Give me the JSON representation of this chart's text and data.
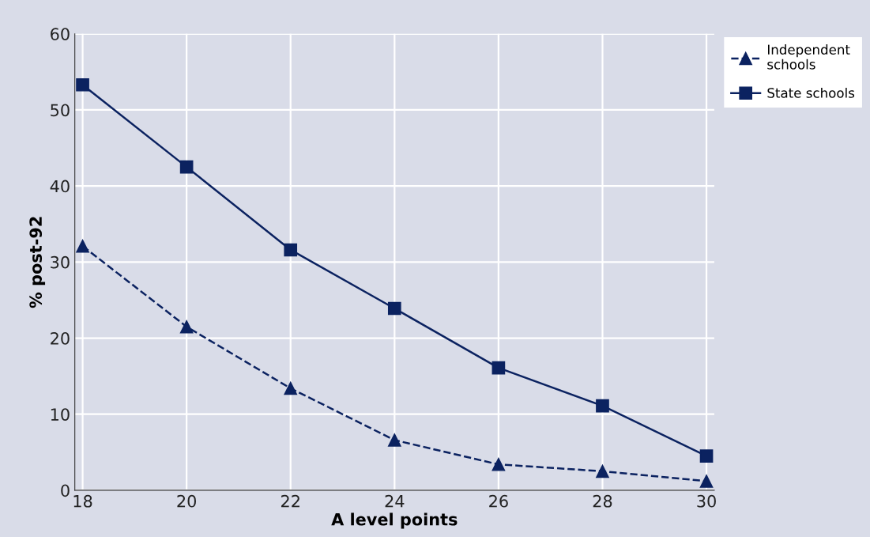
{
  "chart_data": {
    "type": "line",
    "xlabel": "A level points",
    "ylabel": "% post-92",
    "x": [
      18,
      20,
      22,
      24,
      26,
      28,
      30
    ],
    "series": [
      {
        "name": "Independent\nschools",
        "color": "#0b2260",
        "marker": "triangle",
        "line_style": "dashed",
        "values": [
          32.1,
          21.5,
          13.4,
          6.6,
          3.4,
          2.5,
          1.2
        ]
      },
      {
        "name": "State schools",
        "color": "#0b2260",
        "marker": "square",
        "line_style": "solid",
        "values": [
          53.3,
          42.5,
          31.6,
          23.9,
          16.1,
          11.1,
          4.5
        ]
      }
    ],
    "xlim": [
      17.85,
      30.15
    ],
    "xticks": [
      18,
      20,
      22,
      24,
      26,
      28,
      30
    ],
    "ylim": [
      0,
      60
    ],
    "yticks": [
      0,
      10,
      20,
      30,
      40,
      50,
      60
    ],
    "grid": true,
    "legend": "top right"
  }
}
